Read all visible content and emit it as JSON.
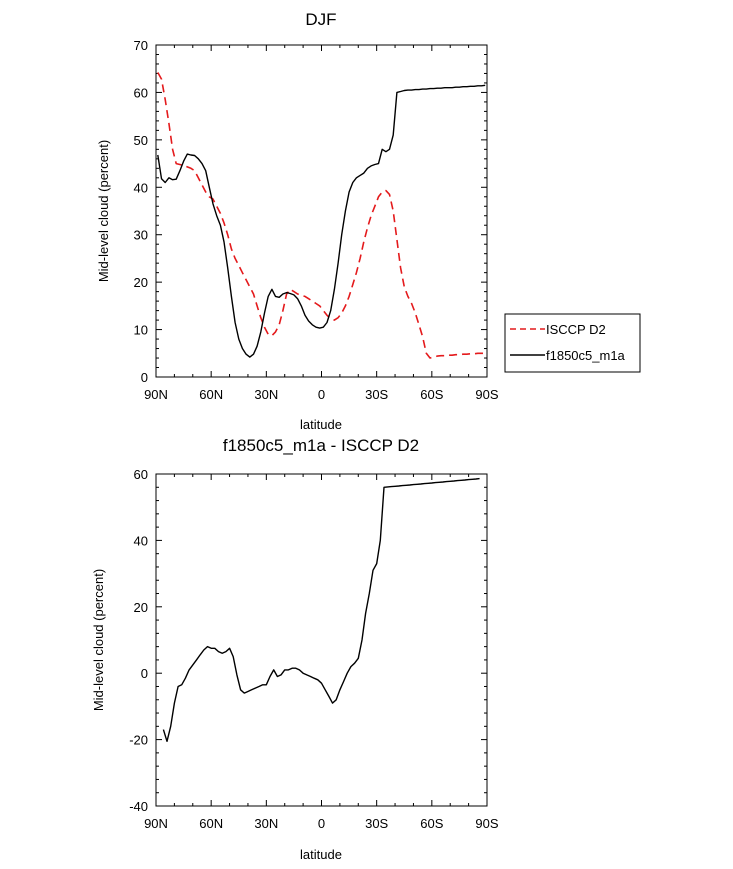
{
  "chart_data": [
    {
      "type": "line",
      "title": "DJF",
      "xlabel": "latitude",
      "ylabel": "Mid-level cloud (percent)",
      "xlim": [
        90,
        -90
      ],
      "ylim": [
        0,
        70
      ],
      "x_ticks": [
        90,
        60,
        30,
        0,
        -30,
        -60,
        -90
      ],
      "x_tick_labels": [
        "90N",
        "60N",
        "30N",
        "0",
        "30S",
        "60S",
        "90S"
      ],
      "y_ticks": [
        0,
        10,
        20,
        30,
        40,
        50,
        60,
        70
      ],
      "y_tick_labels": [
        "0",
        "10",
        "20",
        "30",
        "40",
        "50",
        "60",
        "70"
      ],
      "grid": false,
      "legend_position": "right",
      "series": [
        {
          "name": "ISCCP D2",
          "color": "#e41a1c",
          "dash": "dashed",
          "x": [
            89,
            87,
            85,
            83,
            81,
            79,
            77,
            75,
            73,
            71,
            69,
            67,
            65,
            63,
            61,
            59,
            57,
            55,
            53,
            51,
            49,
            47,
            45,
            43,
            41,
            39,
            37,
            35,
            33,
            31,
            29,
            27,
            25,
            23,
            21,
            19,
            17,
            15,
            13,
            11,
            9,
            7,
            5,
            3,
            1,
            -1,
            -3,
            -5,
            -7,
            -9,
            -11,
            -13,
            -15,
            -17,
            -19,
            -21,
            -23,
            -25,
            -27,
            -29,
            -31,
            -33,
            -35,
            -37,
            -39,
            -41,
            -43,
            -45,
            -47,
            -49,
            -51,
            -53,
            -55,
            -57,
            -59,
            -61,
            -63,
            -65,
            -67,
            -69,
            -71,
            -73,
            -75,
            -77,
            -79,
            -81,
            -83,
            -85,
            -87,
            -89
          ],
          "values": [
            64.2,
            62.8,
            58.5,
            53.5,
            48.0,
            45.0,
            44.8,
            44.6,
            44.3,
            44.0,
            43.5,
            42.0,
            40.5,
            39.0,
            38.0,
            37.5,
            36.0,
            34.5,
            32.5,
            30.0,
            27.0,
            25.0,
            23.5,
            22.0,
            20.5,
            19.0,
            17.5,
            15.0,
            12.5,
            10.5,
            9.0,
            8.7,
            9.5,
            11.0,
            14.0,
            17.5,
            18.5,
            18.0,
            17.5,
            17.2,
            17.0,
            16.5,
            16.0,
            15.5,
            15.0,
            14.0,
            13.0,
            12.3,
            12.0,
            12.5,
            13.5,
            15.0,
            17.0,
            19.5,
            22.0,
            25.0,
            28.5,
            31.5,
            34.0,
            36.0,
            38.0,
            39.0,
            39.3,
            38.5,
            35.0,
            29.0,
            23.0,
            19.0,
            17.0,
            15.5,
            13.5,
            11.0,
            8.5,
            5.0,
            4.0,
            4.2,
            4.4,
            4.5,
            4.5,
            4.6,
            4.6,
            4.7,
            4.7,
            4.8,
            4.8,
            4.9,
            4.9,
            5.0,
            5.0,
            5.0
          ]
        },
        {
          "name": "f1850c5_m1a",
          "color": "#000000",
          "dash": "solid",
          "x": [
            89,
            87,
            85,
            83,
            81,
            79,
            77,
            75,
            73,
            71,
            69,
            67,
            65,
            63,
            61,
            59,
            57,
            55,
            53,
            51,
            49,
            47,
            45,
            43,
            41,
            39,
            37,
            35,
            33,
            31,
            29,
            27,
            25,
            23,
            21,
            19,
            17,
            15,
            13,
            11,
            9,
            7,
            5,
            3,
            1,
            -1,
            -3,
            -5,
            -7,
            -9,
            -11,
            -13,
            -15,
            -17,
            -19,
            -21,
            -23,
            -25,
            -27,
            -29,
            -31,
            -33,
            -35,
            -37,
            -39,
            -41,
            -43,
            -45,
            -47,
            -49,
            -51,
            -53,
            -55,
            -57,
            -59,
            -61,
            -63,
            -65,
            -67,
            -69,
            -71,
            -73,
            -75,
            -77,
            -79,
            -81,
            -83,
            -85,
            -87,
            -89
          ],
          "values": [
            46.8,
            41.8,
            41.0,
            42.0,
            41.6,
            41.7,
            43.5,
            45.5,
            47.0,
            46.8,
            46.7,
            46.0,
            45.0,
            43.5,
            40.0,
            36.5,
            34.0,
            32.0,
            28.5,
            23.0,
            17.0,
            11.5,
            8.0,
            6.0,
            4.8,
            4.2,
            4.8,
            6.5,
            9.5,
            13.5,
            17.0,
            18.5,
            17.0,
            16.8,
            17.5,
            17.8,
            17.6,
            17.3,
            16.5,
            15.0,
            13.0,
            11.8,
            11.0,
            10.5,
            10.3,
            10.5,
            11.5,
            14.0,
            18.5,
            24.0,
            30.0,
            35.0,
            39.0,
            41.0,
            42.0,
            42.5,
            43.0,
            44.0,
            44.5,
            44.8,
            45.0,
            48.0,
            47.5,
            48.0,
            51.0,
            60.0,
            60.2,
            60.4,
            60.5,
            60.5,
            60.6,
            60.6,
            60.7,
            60.7,
            60.8,
            60.8,
            60.9,
            60.9,
            61.0,
            61.0,
            61.0,
            61.1,
            61.1,
            61.2,
            61.2,
            61.3,
            61.3,
            61.4,
            61.4,
            61.5
          ]
        }
      ]
    },
    {
      "type": "line",
      "title": "f1850c5_m1a - ISCCP D2",
      "xlabel": "latitude",
      "ylabel": "Mid-level cloud (percent)",
      "xlim": [
        90,
        -90
      ],
      "ylim": [
        -40,
        60
      ],
      "x_ticks": [
        90,
        60,
        30,
        0,
        -30,
        -60,
        -90
      ],
      "x_tick_labels": [
        "90N",
        "60N",
        "30N",
        "0",
        "30S",
        "60S",
        "90S"
      ],
      "y_ticks": [
        -40,
        -20,
        0,
        20,
        40,
        60
      ],
      "y_tick_labels": [
        "-40",
        "-20",
        "0",
        "20",
        "40",
        "60"
      ],
      "grid": false,
      "series": [
        {
          "color": "#000000",
          "dash": "solid",
          "x": [
            86,
            84,
            82,
            80,
            78,
            76,
            74,
            72,
            70,
            68,
            66,
            64,
            62,
            60,
            58,
            56,
            54,
            52,
            50,
            48,
            46,
            44,
            42,
            40,
            38,
            36,
            34,
            32,
            30,
            28,
            26,
            24,
            22,
            20,
            18,
            16,
            14,
            12,
            10,
            8,
            6,
            4,
            2,
            0,
            -2,
            -4,
            -6,
            -8,
            -10,
            -12,
            -14,
            -16,
            -18,
            -20,
            -22,
            -24,
            -26,
            -28,
            -30,
            -32,
            -34,
            -36,
            -38,
            -40,
            -42,
            -44,
            -46,
            -48,
            -50,
            -52,
            -54,
            -56,
            -58,
            -60,
            -62,
            -64,
            -66,
            -68,
            -70,
            -72,
            -74,
            -76,
            -78,
            -80,
            -82,
            -84,
            -86
          ],
          "values": [
            -17.0,
            -20.5,
            -16.0,
            -9.0,
            -4.0,
            -3.5,
            -1.5,
            1.0,
            2.5,
            4.0,
            5.5,
            7.0,
            8.0,
            7.5,
            7.5,
            6.5,
            6.0,
            6.5,
            7.5,
            5.0,
            -0.5,
            -5.0,
            -6.0,
            -5.5,
            -5.0,
            -4.5,
            -4.0,
            -3.5,
            -3.5,
            -1.0,
            1.0,
            -1.0,
            -0.5,
            1.0,
            1.0,
            1.5,
            1.5,
            1.0,
            0.0,
            -0.5,
            -1.0,
            -1.5,
            -2.0,
            -3.0,
            -5.0,
            -7.0,
            -9.0,
            -8.0,
            -5.0,
            -2.5,
            0.0,
            2.0,
            3.0,
            4.5,
            10.0,
            18.0,
            24.0,
            31.0,
            33.0,
            40.0,
            56.0,
            56.1,
            56.2,
            56.3,
            56.4,
            56.5,
            56.6,
            56.7,
            56.8,
            56.9,
            57.0,
            57.1,
            57.2,
            57.3,
            57.4,
            57.5,
            57.6,
            57.7,
            57.8,
            57.9,
            58.0,
            58.1,
            58.2,
            58.3,
            58.4,
            58.5,
            58.6
          ]
        }
      ]
    }
  ]
}
